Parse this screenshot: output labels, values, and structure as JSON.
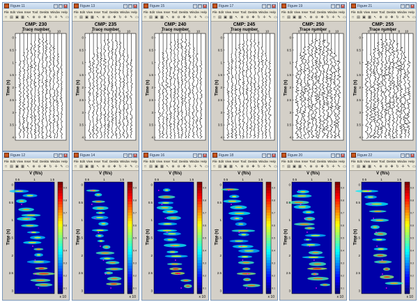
{
  "windows": [
    {
      "title": "Figure 11",
      "cmp": "CMP: 230",
      "x_ticks": [
        "2",
        "4",
        "6",
        "8",
        "10"
      ]
    },
    {
      "title": "Figure 13",
      "cmp": "CMP: 235",
      "x_ticks": [
        "2",
        "4",
        "6",
        "8",
        "10"
      ]
    },
    {
      "title": "Figure 15",
      "cmp": "CMP: 240",
      "x_ticks": [
        "2",
        "4",
        "6",
        "8",
        "10"
      ]
    },
    {
      "title": "Figure 17",
      "cmp": "CMP: 245",
      "x_ticks": [
        "2",
        "4",
        "6",
        "8",
        "10"
      ]
    },
    {
      "title": "Figure 19",
      "cmp": "CMP: 250",
      "x_ticks": [
        "0",
        "2",
        "4",
        "6",
        "8",
        "10"
      ]
    },
    {
      "title": "Figure 21",
      "cmp": "CMP: 255",
      "x_ticks": [
        "0",
        "2",
        "4",
        "6",
        "8",
        "10"
      ]
    },
    {
      "title": "Figure 12",
      "cmp": "",
      "x_ticks": [
        "0.5",
        "1",
        "1.5"
      ]
    },
    {
      "title": "Figure 14",
      "cmp": "",
      "x_ticks": [
        "0.5",
        "1",
        "1.5"
      ]
    },
    {
      "title": "Figure 16",
      "cmp": "",
      "x_ticks": [
        "0.5",
        "1",
        "1.5"
      ]
    },
    {
      "title": "Figure 18",
      "cmp": "",
      "x_ticks": [
        "0.5",
        "1",
        "1.5"
      ]
    },
    {
      "title": "Figure 20",
      "cmp": "",
      "x_ticks": [
        "0.5",
        "1",
        "1.5"
      ]
    },
    {
      "title": "Figure 22",
      "cmp": "",
      "x_ticks": [
        "0.5",
        "1",
        "1.5"
      ]
    }
  ],
  "menu": [
    "File",
    "Edit",
    "View",
    "Inser",
    "Tool:",
    "Deskto",
    "Windov",
    "Help"
  ],
  "seismic": {
    "xlabel": "Trace number",
    "ylabel": "Time (s)",
    "y_ticks": [
      "0",
      "0.5",
      "1",
      "1.5",
      "2",
      "2.5",
      "3",
      "3.5",
      "4"
    ]
  },
  "semblance": {
    "xlabel": "V (ft/s)",
    "ylabel": "Time (s)",
    "y_ticks": [
      "0",
      "0.5",
      "1",
      "1.5",
      "2",
      "2.5",
      "3"
    ],
    "x_exponent": "x 10",
    "colorbar_ticks": [
      "0.9",
      "0.8",
      "0.7",
      "0.6",
      "0.5",
      "0.4",
      "0.3",
      "0.2",
      "0.1"
    ]
  },
  "icons": [
    "new-file-icon",
    "open-folder-icon",
    "save-icon",
    "print-icon",
    "pointer-icon",
    "zoom-in-icon",
    "zoom-out-icon",
    "pan-icon",
    "rotate-icon",
    "data-cursor-icon",
    "brush-icon",
    "legend-icon",
    "colorbar-icon"
  ]
}
